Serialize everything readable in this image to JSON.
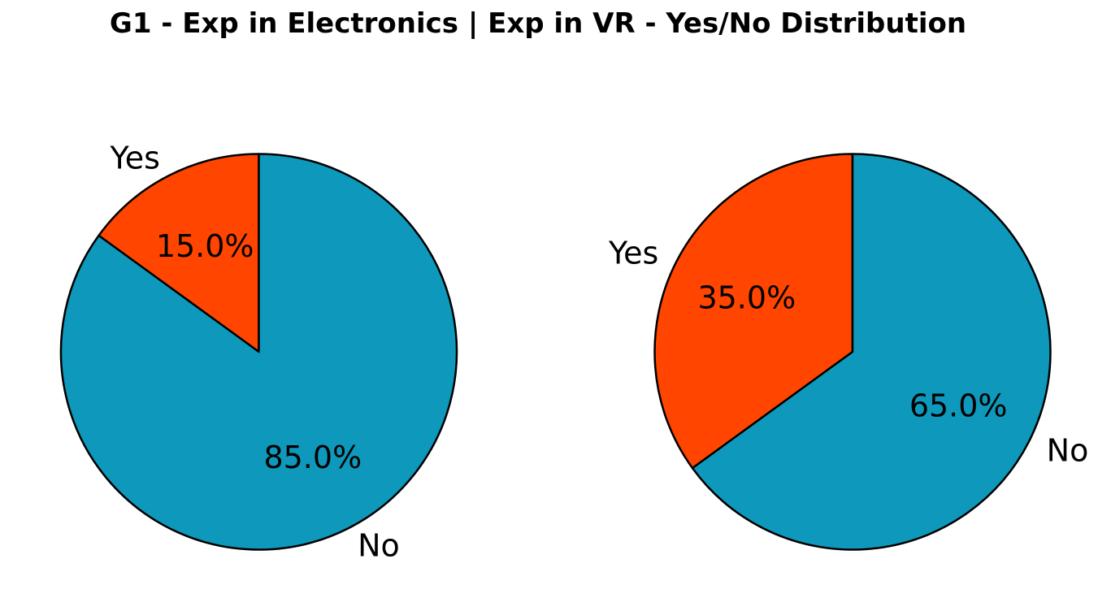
{
  "title": "G1 - Exp in Electronics | Exp in VR - Yes/No Distribution",
  "colors": {
    "Yes": "#FF4500",
    "No": "#0E98BB",
    "edge": "#000000"
  },
  "chart_data": [
    {
      "type": "pie",
      "title": "",
      "categories": [
        "Yes",
        "No"
      ],
      "values": [
        15.0,
        85.0
      ],
      "labels": [
        "15.0%",
        "85.0%"
      ],
      "start_angle_deg": 90,
      "direction": "counterclockwise"
    },
    {
      "type": "pie",
      "title": "",
      "categories": [
        "Yes",
        "No"
      ],
      "values": [
        35.0,
        65.0
      ],
      "labels": [
        "35.0%",
        "65.0%"
      ],
      "start_angle_deg": 90,
      "direction": "counterclockwise"
    }
  ]
}
